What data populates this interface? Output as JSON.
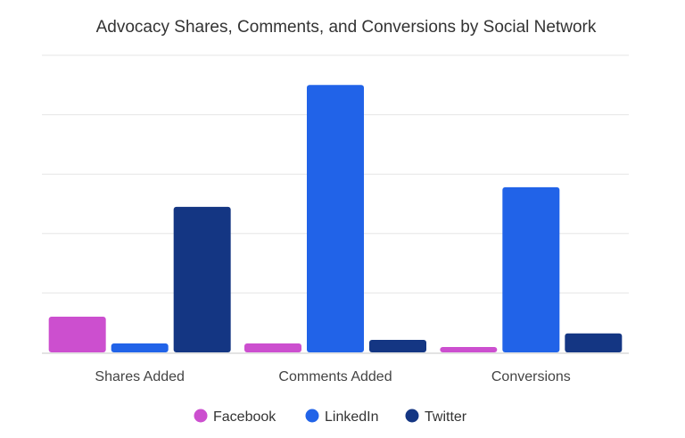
{
  "chart_data": {
    "type": "bar",
    "title": "Advocacy Shares, Comments, and Conversions by Social Network",
    "xlabel": "",
    "ylabel": "",
    "categories": [
      "Shares Added",
      "Comments Added",
      "Conversions"
    ],
    "series": [
      {
        "name": "Facebook",
        "color": "#cc4fcf",
        "values": [
          0.6,
          0.15,
          0.09
        ]
      },
      {
        "name": "LinkedIn",
        "color": "#2163e8",
        "values": [
          0.15,
          4.5,
          2.78
        ]
      },
      {
        "name": "Twitter",
        "color": "#143683",
        "values": [
          2.45,
          0.21,
          0.32
        ]
      }
    ],
    "ylim": [
      0,
      5
    ],
    "y_tick_labels_shown": false,
    "grid": true,
    "legend_position": "bottom"
  }
}
